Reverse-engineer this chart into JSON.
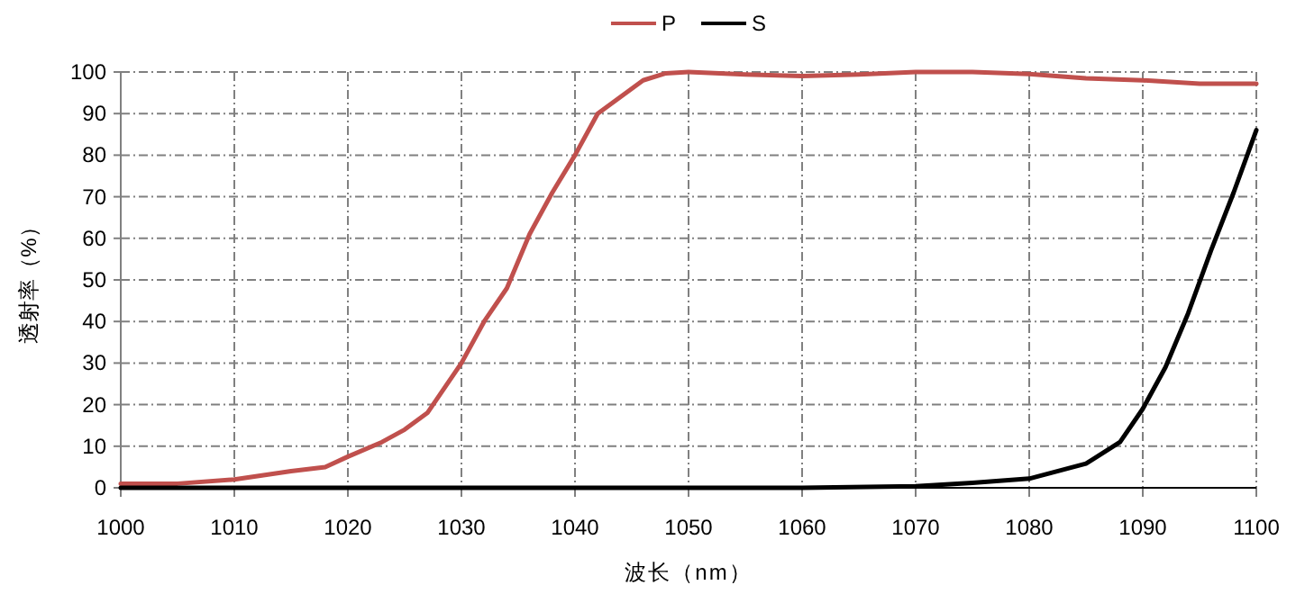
{
  "chart_data": {
    "type": "line",
    "xlabel": "波长（nm）",
    "ylabel": "透射率（%）",
    "xlim": [
      1000,
      1100
    ],
    "xticks": [
      1000,
      1010,
      1020,
      1030,
      1040,
      1050,
      1060,
      1070,
      1080,
      1090,
      1100
    ],
    "ylim": [
      0,
      100
    ],
    "yticks": [
      0,
      10,
      20,
      30,
      40,
      50,
      60,
      70,
      80,
      90,
      100
    ],
    "grid": true,
    "legend": "top",
    "marker": "none",
    "line_style": "solid",
    "series": [
      {
        "name": "P",
        "color": "#c0504d",
        "x": [
          1000,
          1005,
          1010,
          1015,
          1018,
          1020,
          1023,
          1025,
          1027,
          1030,
          1032,
          1034,
          1036,
          1038,
          1040,
          1042,
          1044,
          1046,
          1048,
          1050,
          1055,
          1060,
          1065,
          1070,
          1075,
          1080,
          1085,
          1090,
          1095,
          1100
        ],
        "values": [
          1,
          1,
          2,
          4,
          5,
          7.5,
          11,
          14,
          18,
          30,
          40,
          48,
          61,
          71,
          80,
          90,
          94,
          98,
          99.7,
          100,
          99.4,
          99,
          99.4,
          100,
          100,
          99.5,
          98.5,
          98,
          97.2,
          97.2
        ]
      },
      {
        "name": "S",
        "color": "#000000",
        "x": [
          1000,
          1060,
          1070,
          1075,
          1080,
          1085,
          1088,
          1090,
          1092,
          1094,
          1096,
          1098,
          1100
        ],
        "values": [
          0,
          0,
          0.4,
          1.2,
          2.2,
          5.8,
          11,
          19,
          29,
          42,
          57,
          71,
          86
        ]
      }
    ]
  }
}
